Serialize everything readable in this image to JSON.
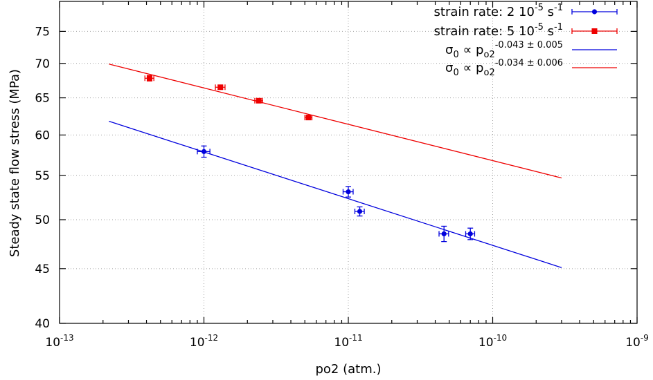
{
  "chart_data": {
    "type": "scatter",
    "xlabel": "po2 (atm.)",
    "ylabel": "Steady state flow stress (MPa)",
    "x_scale": "log",
    "y_scale": "log",
    "xlim": [
      1e-13,
      1e-09
    ],
    "ylim": [
      40,
      80
    ],
    "grid": true,
    "legend_position": "top-right",
    "x_ticks": [
      {
        "value": 1e-13,
        "base": "10",
        "exp": "-13"
      },
      {
        "value": 1e-12,
        "base": "10",
        "exp": "-12"
      },
      {
        "value": 1e-11,
        "base": "10",
        "exp": "-11"
      },
      {
        "value": 1e-10,
        "base": "10",
        "exp": "-10"
      },
      {
        "value": 1e-09,
        "base": "10",
        "exp": "-9"
      }
    ],
    "y_ticks": [
      {
        "value": 40,
        "label": "40"
      },
      {
        "value": 45,
        "label": "45"
      },
      {
        "value": 50,
        "label": "50"
      },
      {
        "value": 55,
        "label": "55"
      },
      {
        "value": 60,
        "label": "60"
      },
      {
        "value": 65,
        "label": "65"
      },
      {
        "value": 70,
        "label": "70"
      },
      {
        "value": 75,
        "label": "75"
      }
    ],
    "series": [
      {
        "legend": {
          "prefix": "strain rate: 2 10",
          "exp1": "-5",
          "mid": " s",
          "exp2": "-1"
        },
        "color": "#0000dd",
        "marker": "circle",
        "points": [
          {
            "x": 1e-12,
            "y": 57.9,
            "xerr": 1e-13,
            "yerr": 0.7
          },
          {
            "x": 1e-11,
            "y": 53.1,
            "xerr": 8e-13,
            "yerr": 0.6
          },
          {
            "x": 1.2e-11,
            "y": 50.9,
            "xerr": 9e-13,
            "yerr": 0.5
          },
          {
            "x": 4.6e-11,
            "y": 48.5,
            "xerr": 3.5e-12,
            "yerr": 0.8
          },
          {
            "x": 7e-11,
            "y": 48.5,
            "xerr": 5e-12,
            "yerr": 0.6
          }
        ]
      },
      {
        "legend": {
          "prefix": "strain rate: 5 10",
          "exp1": "-5",
          "mid": " s",
          "exp2": "-1"
        },
        "color": "#ee0000",
        "marker": "square",
        "points": [
          {
            "x": 4.2e-13,
            "y": 67.8,
            "xerr": 3e-14,
            "yerr": 0.4
          },
          {
            "x": 1.3e-12,
            "y": 66.5,
            "xerr": 1e-13,
            "yerr": 0.3
          },
          {
            "x": 2.4e-12,
            "y": 64.6,
            "xerr": 1.5e-13,
            "yerr": 0.3
          },
          {
            "x": 5.3e-12,
            "y": 62.3,
            "xerr": 3e-13,
            "yerr": 0.3
          }
        ]
      }
    ],
    "fits": [
      {
        "legend": {
          "prefix": "σ",
          "sub1": "0",
          "mid": " ∝  p",
          "sub2": "o2",
          "exp": "-0.043 ± 0.005"
        },
        "color": "#0000dd",
        "x_range": [
          2.2e-13,
          3e-10
        ],
        "y_range": [
          61.8,
          45.1
        ]
      },
      {
        "legend": {
          "prefix": "σ",
          "sub1": "0",
          "mid": " ∝  p",
          "sub2": "o2",
          "exp": "-0.034 ± 0.006"
        },
        "color": "#ee0000",
        "x_range": [
          2.2e-13,
          3e-10
        ],
        "y_range": [
          69.9,
          54.7
        ]
      }
    ]
  }
}
